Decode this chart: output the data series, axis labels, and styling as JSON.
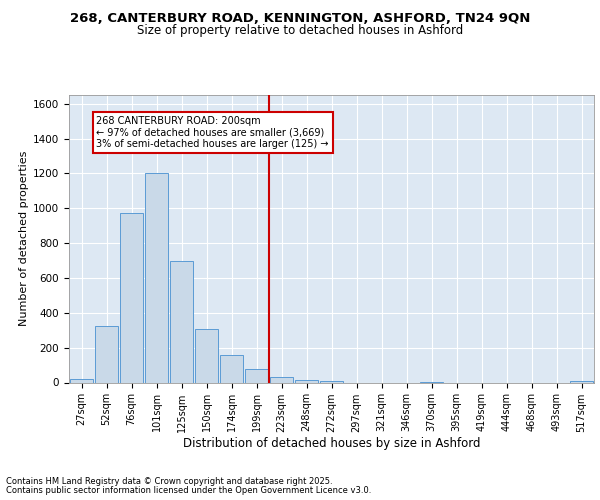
{
  "title1": "268, CANTERBURY ROAD, KENNINGTON, ASHFORD, TN24 9QN",
  "title2": "Size of property relative to detached houses in Ashford",
  "xlabel": "Distribution of detached houses by size in Ashford",
  "ylabel": "Number of detached properties",
  "bins": [
    "27sqm",
    "52sqm",
    "76sqm",
    "101sqm",
    "125sqm",
    "150sqm",
    "174sqm",
    "199sqm",
    "223sqm",
    "248sqm",
    "272sqm",
    "297sqm",
    "321sqm",
    "346sqm",
    "370sqm",
    "395sqm",
    "419sqm",
    "444sqm",
    "468sqm",
    "493sqm",
    "517sqm"
  ],
  "values": [
    20,
    325,
    975,
    1205,
    700,
    305,
    160,
    75,
    30,
    15,
    10,
    0,
    0,
    0,
    5,
    0,
    0,
    0,
    0,
    0,
    10
  ],
  "bar_color": "#c9d9e8",
  "bar_edge_color": "#5b9bd5",
  "vline_x": 7.5,
  "vline_color": "#cc0000",
  "annotation_text": "268 CANTERBURY ROAD: 200sqm\n← 97% of detached houses are smaller (3,669)\n3% of semi-detached houses are larger (125) →",
  "annotation_box_color": "#ffffff",
  "annotation_box_edge": "#cc0000",
  "ylim": [
    0,
    1650
  ],
  "yticks": [
    0,
    200,
    400,
    600,
    800,
    1000,
    1200,
    1400,
    1600
  ],
  "footer1": "Contains HM Land Registry data © Crown copyright and database right 2025.",
  "footer2": "Contains public sector information licensed under the Open Government Licence v3.0.",
  "bg_color": "#dde8f3",
  "grid_color": "#ffffff"
}
